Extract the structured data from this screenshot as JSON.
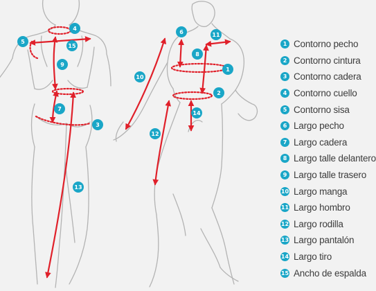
{
  "colors": {
    "background": "#f2f2f2",
    "sketch_line": "#b3b3b3",
    "measure_line": "#e0202a",
    "badge_fill": "#1aa6c7",
    "badge_text": "#ffffff",
    "legend_text": "#3c3c3c"
  },
  "legend": [
    {
      "number": "1",
      "label": "Contorno pecho"
    },
    {
      "number": "2",
      "label": "Contorno cintura"
    },
    {
      "number": "3",
      "label": "Contorno cadera"
    },
    {
      "number": "4",
      "label": "Contorno cuello"
    },
    {
      "number": "5",
      "label": "Contorno sisa"
    },
    {
      "number": "6",
      "label": "Largo pecho"
    },
    {
      "number": "7",
      "label": "Largo cadera"
    },
    {
      "number": "8",
      "label": "Largo talle delantero"
    },
    {
      "number": "9",
      "label": "Largo talle trasero"
    },
    {
      "number": "10",
      "label": "Largo manga"
    },
    {
      "number": "11",
      "label": "Largo hombro"
    },
    {
      "number": "12",
      "label": "Largo rodilla"
    },
    {
      "number": "13",
      "label": "Largo pantalón"
    },
    {
      "number": "14",
      "label": "Largo tiro"
    },
    {
      "number": "15",
      "label": "Ancho de espalda"
    }
  ],
  "figure_badges": {
    "b1": "1",
    "b2": "2",
    "b3": "3",
    "b4": "4",
    "b5": "5",
    "b6": "6",
    "b7": "7",
    "b8": "8",
    "b9": "9",
    "b10": "10",
    "b11": "11",
    "b12": "12",
    "b13": "13",
    "b14": "14",
    "b15": "15"
  }
}
